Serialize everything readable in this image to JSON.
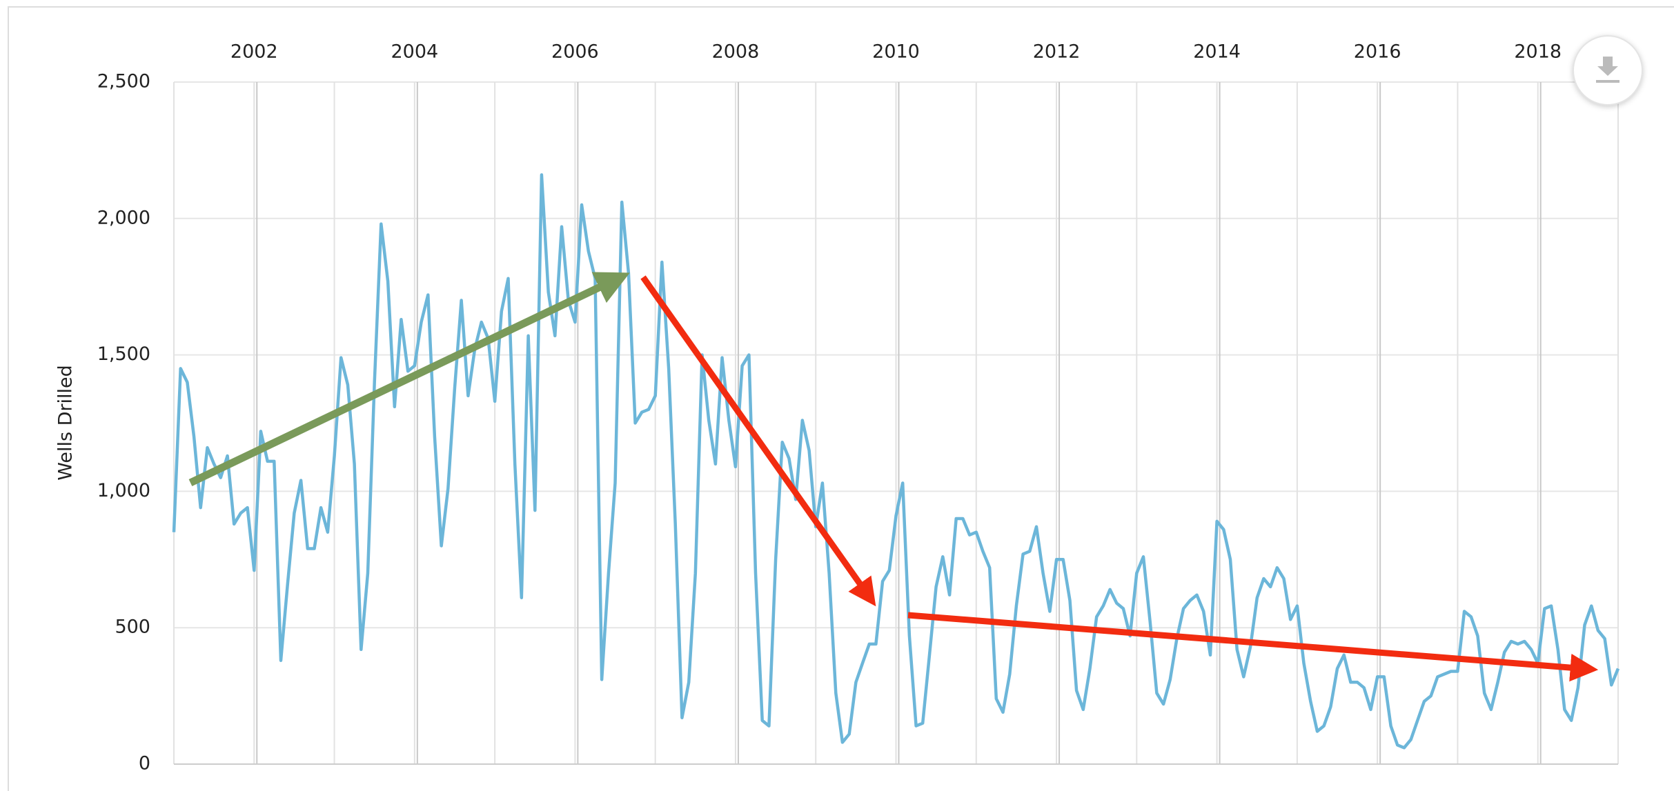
{
  "chart_data": {
    "type": "line",
    "ylabel": "Wells Drilled",
    "xlim": [
      2001,
      2019
    ],
    "ylim": [
      0,
      2500
    ],
    "xticks": [
      2002,
      2004,
      2006,
      2008,
      2010,
      2012,
      2014,
      2016,
      2018
    ],
    "x_grid_lines": [
      2001,
      2002,
      2003,
      2004,
      2005,
      2006,
      2007,
      2008,
      2009,
      2010,
      2011,
      2012,
      2013,
      2014,
      2015,
      2016,
      2017,
      2018,
      2019
    ],
    "yticks": [
      0,
      500,
      {
        "value": 1000,
        "label": "1,000"
      },
      {
        "value": 1500,
        "label": "1,500"
      },
      {
        "value": 2000,
        "label": "2,000"
      },
      {
        "value": 2500,
        "label": "2,500"
      }
    ],
    "grid": true,
    "x": [
      2001,
      2001.083,
      2001.167,
      2001.25,
      2001.333,
      2001.417,
      2001.5,
      2001.583,
      2001.667,
      2001.75,
      2001.833,
      2001.917,
      2002,
      2002.083,
      2002.167,
      2002.25,
      2002.333,
      2002.417,
      2002.5,
      2002.583,
      2002.667,
      2002.75,
      2002.833,
      2002.917,
      2003,
      2003.083,
      2003.167,
      2003.25,
      2003.333,
      2003.417,
      2003.5,
      2003.583,
      2003.667,
      2003.75,
      2003.833,
      2003.917,
      2004,
      2004.083,
      2004.167,
      2004.25,
      2004.333,
      2004.417,
      2004.5,
      2004.583,
      2004.667,
      2004.75,
      2004.833,
      2004.917,
      2005,
      2005.083,
      2005.167,
      2005.25,
      2005.333,
      2005.417,
      2005.5,
      2005.583,
      2005.667,
      2005.75,
      2005.833,
      2005.917,
      2006,
      2006.083,
      2006.167,
      2006.25,
      2006.333,
      2006.417,
      2006.5,
      2006.583,
      2006.667,
      2006.75,
      2006.833,
      2006.917,
      2007,
      2007.083,
      2007.167,
      2007.25,
      2007.333,
      2007.417,
      2007.5,
      2007.583,
      2007.667,
      2007.75,
      2007.833,
      2007.917,
      2008,
      2008.083,
      2008.167,
      2008.25,
      2008.333,
      2008.417,
      2008.5,
      2008.583,
      2008.667,
      2008.75,
      2008.833,
      2008.917,
      2009,
      2009.083,
      2009.167,
      2009.25,
      2009.333,
      2009.417,
      2009.5,
      2009.583,
      2009.667,
      2009.75,
      2009.833,
      2009.917,
      2010,
      2010.083,
      2010.167,
      2010.25,
      2010.333,
      2010.417,
      2010.5,
      2010.583,
      2010.667,
      2010.75,
      2010.833,
      2010.917,
      2011,
      2011.083,
      2011.167,
      2011.25,
      2011.333,
      2011.417,
      2011.5,
      2011.583,
      2011.667,
      2011.75,
      2011.833,
      2011.917,
      2012,
      2012.083,
      2012.167,
      2012.25,
      2012.333,
      2012.417,
      2012.5,
      2012.583,
      2012.667,
      2012.75,
      2012.833,
      2012.917,
      2013,
      2013.083,
      2013.167,
      2013.25,
      2013.333,
      2013.417,
      2013.5,
      2013.583,
      2013.667,
      2013.75,
      2013.833,
      2013.917,
      2014,
      2014.083,
      2014.167,
      2014.25,
      2014.333,
      2014.417,
      2014.5,
      2014.583,
      2014.667,
      2014.75,
      2014.833,
      2014.917,
      2015,
      2015.083,
      2015.167,
      2015.25,
      2015.333,
      2015.417,
      2015.5,
      2015.583,
      2015.667,
      2015.75,
      2015.833,
      2015.917,
      2016,
      2016.083,
      2016.167,
      2016.25,
      2016.333,
      2016.417,
      2016.5,
      2016.583,
      2016.667,
      2016.75,
      2016.833,
      2016.917,
      2017,
      2017.083,
      2017.167,
      2017.25,
      2017.333,
      2017.417,
      2017.5,
      2017.583,
      2017.667,
      2017.75,
      2017.833,
      2017.917,
      2018,
      2018.083,
      2018.167,
      2018.25,
      2018.333,
      2018.417,
      2018.5,
      2018.583,
      2018.667,
      2018.75,
      2018.833,
      2018.917,
      2019
    ],
    "series": [
      {
        "color": "#6cb6d9",
        "values": [
          850,
          1450,
          1400,
          1200,
          940,
          1160,
          1100,
          1050,
          1130,
          880,
          920,
          940,
          710,
          1220,
          1110,
          1110,
          380,
          660,
          920,
          1040,
          790,
          790,
          940,
          850,
          1130,
          1490,
          1390,
          1100,
          420,
          700,
          1400,
          1980,
          1770,
          1310,
          1630,
          1440,
          1460,
          1620,
          1720,
          1200,
          800,
          1010,
          1380,
          1700,
          1350,
          1520,
          1620,
          1560,
          1330,
          1660,
          1780,
          1100,
          610,
          1570,
          930,
          2160,
          1730,
          1570,
          1970,
          1700,
          1620,
          2050,
          1880,
          1780,
          310,
          700,
          1030,
          2060,
          1800,
          1250,
          1290,
          1300,
          1350,
          1840,
          1450,
          880,
          170,
          300,
          700,
          1500,
          1260,
          1100,
          1490,
          1260,
          1090,
          1460,
          1500,
          700,
          160,
          140,
          750,
          1180,
          1120,
          970,
          1260,
          1150,
          870,
          1030,
          700,
          260,
          80,
          110,
          300,
          370,
          440,
          440,
          670,
          710,
          910,
          1030,
          470,
          140,
          150,
          400,
          650,
          760,
          620,
          900,
          900,
          840,
          850,
          780,
          720,
          240,
          190,
          330,
          580,
          770,
          780,
          870,
          700,
          560,
          750,
          750,
          600,
          270,
          200,
          350,
          540,
          580,
          640,
          590,
          570,
          470,
          700,
          760,
          520,
          260,
          220,
          310,
          460,
          570,
          600,
          620,
          560,
          400,
          890,
          860,
          750,
          420,
          320,
          430,
          610,
          680,
          650,
          720,
          680,
          530,
          580,
          370,
          230,
          120,
          140,
          210,
          350,
          400,
          300,
          300,
          280,
          200,
          320,
          320,
          140,
          70,
          60,
          90,
          160,
          230,
          250,
          320,
          330,
          340,
          340,
          560,
          540,
          470,
          260,
          200,
          300,
          410,
          450,
          440,
          450,
          420,
          370,
          570,
          580,
          420,
          200,
          160,
          280,
          510,
          580,
          490,
          460,
          290,
          350
        ]
      }
    ]
  }
}
